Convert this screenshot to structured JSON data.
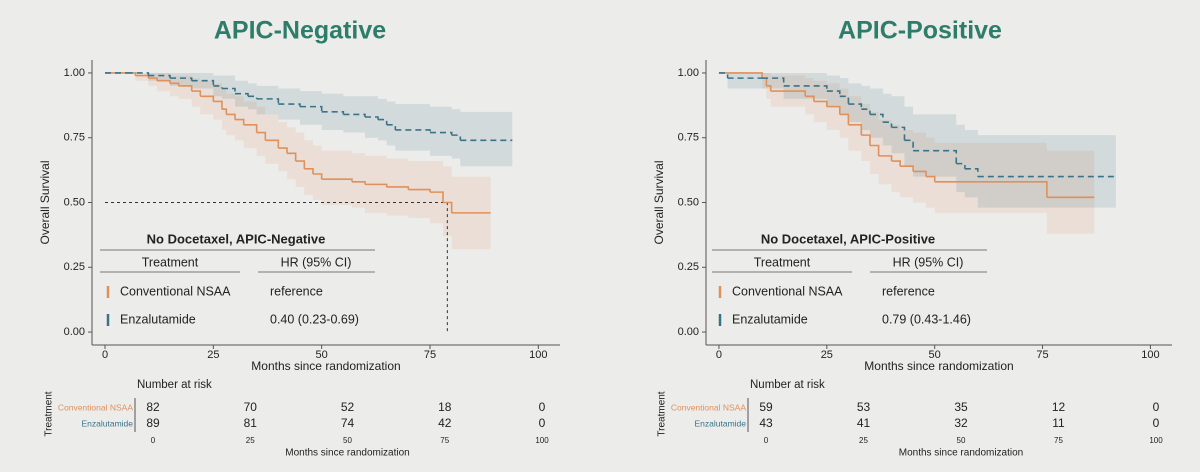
{
  "chart_data": [
    {
      "type": "step",
      "title": "APIC-Negative",
      "xlabel": "Months since randomization",
      "ylabel": "Overall Survival",
      "xlim": [
        -3,
        105
      ],
      "ylim": [
        -0.05,
        1.05
      ],
      "xticks": [
        0,
        25,
        50,
        75,
        100
      ],
      "yticks": [
        {
          "value": 0,
          "label": "0.00"
        },
        {
          "value": 0.25,
          "label": "0.25"
        },
        {
          "value": 0.5,
          "label": "0.50"
        },
        {
          "value": 0.75,
          "label": "0.75"
        },
        {
          "value": 1,
          "label": "1.00"
        }
      ],
      "median": {
        "x": 79,
        "y": 0.5
      },
      "legend_table": {
        "title": "No Docetaxel, APIC-Negative",
        "headers": [
          "Treatment",
          "HR (95% CI)"
        ]
      },
      "risk_table": {
        "title": "Number at risk",
        "ylabel": "Treatment",
        "xlabel": "Months since randomization",
        "times": [
          0,
          25,
          50,
          75,
          100
        ]
      },
      "series": [
        {
          "name": "Conventional NSAA",
          "color": "#e0905a",
          "dash": false,
          "hr": "reference",
          "at_risk": [
            82,
            70,
            52,
            18,
            0
          ],
          "x": [
            0,
            5,
            7,
            10,
            12,
            15,
            17,
            20,
            22,
            25,
            27,
            28,
            30,
            32,
            35,
            37,
            40,
            42,
            44,
            46,
            48,
            50,
            57,
            60,
            65,
            70,
            75,
            78,
            80,
            89
          ],
          "values": [
            1,
            1,
            0.99,
            0.98,
            0.97,
            0.96,
            0.95,
            0.93,
            0.91,
            0.89,
            0.86,
            0.84,
            0.82,
            0.8,
            0.77,
            0.74,
            0.71,
            0.69,
            0.66,
            0.63,
            0.61,
            0.59,
            0.58,
            0.57,
            0.56,
            0.55,
            0.54,
            0.5,
            0.46,
            0.46
          ],
          "lower": [
            1,
            1,
            0.97,
            0.95,
            0.93,
            0.91,
            0.9,
            0.87,
            0.84,
            0.82,
            0.78,
            0.76,
            0.74,
            0.71,
            0.68,
            0.65,
            0.62,
            0.59,
            0.56,
            0.53,
            0.51,
            0.49,
            0.48,
            0.46,
            0.45,
            0.44,
            0.42,
            0.37,
            0.32,
            0.32
          ],
          "upper": [
            1,
            1,
            1,
            1,
            1,
            0.99,
            0.99,
            0.98,
            0.97,
            0.96,
            0.94,
            0.92,
            0.91,
            0.89,
            0.87,
            0.84,
            0.81,
            0.79,
            0.77,
            0.74,
            0.72,
            0.7,
            0.69,
            0.68,
            0.67,
            0.66,
            0.66,
            0.64,
            0.6,
            0.6
          ]
        },
        {
          "name": "Enzalutamide",
          "color": "#3a7388",
          "dash": true,
          "hr": "0.40 (0.23-0.69)",
          "at_risk": [
            89,
            81,
            74,
            42,
            0
          ],
          "x": [
            0,
            5,
            10,
            15,
            20,
            25,
            27,
            30,
            33,
            35,
            40,
            45,
            50,
            55,
            60,
            63,
            65,
            67,
            75,
            80,
            82,
            94
          ],
          "values": [
            1,
            1,
            0.99,
            0.98,
            0.97,
            0.95,
            0.94,
            0.92,
            0.91,
            0.9,
            0.88,
            0.87,
            0.85,
            0.84,
            0.83,
            0.82,
            0.8,
            0.78,
            0.77,
            0.76,
            0.74,
            0.74
          ],
          "lower": [
            1,
            1,
            0.97,
            0.95,
            0.94,
            0.91,
            0.9,
            0.87,
            0.86,
            0.84,
            0.82,
            0.8,
            0.78,
            0.77,
            0.75,
            0.74,
            0.72,
            0.7,
            0.68,
            0.67,
            0.64,
            0.64
          ],
          "upper": [
            1,
            1,
            1,
            1,
            1,
            0.99,
            0.99,
            0.97,
            0.96,
            0.95,
            0.94,
            0.93,
            0.92,
            0.91,
            0.91,
            0.9,
            0.89,
            0.88,
            0.87,
            0.86,
            0.85,
            0.85
          ]
        }
      ]
    },
    {
      "type": "step",
      "title": "APIC-Positive",
      "xlabel": "Months since randomization",
      "ylabel": "Overall Survival",
      "xlim": [
        -3,
        105
      ],
      "ylim": [
        -0.05,
        1.05
      ],
      "xticks": [
        0,
        25,
        50,
        75,
        100
      ],
      "yticks": [
        {
          "value": 0,
          "label": "0.00"
        },
        {
          "value": 0.25,
          "label": "0.25"
        },
        {
          "value": 0.5,
          "label": "0.50"
        },
        {
          "value": 0.75,
          "label": "0.75"
        },
        {
          "value": 1,
          "label": "1.00"
        }
      ],
      "legend_table": {
        "title": "No Docetaxel, APIC-Positive",
        "headers": [
          "Treatment",
          "HR (95% CI)"
        ]
      },
      "risk_table": {
        "title": "Number at risk",
        "ylabel": "Treatment",
        "xlabel": "Months since randomization",
        "times": [
          0,
          25,
          50,
          75,
          100
        ]
      },
      "series": [
        {
          "name": "Conventional NSAA",
          "color": "#e0905a",
          "dash": false,
          "hr": "reference",
          "at_risk": [
            59,
            53,
            35,
            12,
            0
          ],
          "x": [
            0,
            10,
            11,
            12,
            20,
            22,
            25,
            28,
            30,
            33,
            35,
            37,
            40,
            42,
            45,
            48,
            50,
            76,
            87
          ],
          "values": [
            1,
            0.98,
            0.95,
            0.93,
            0.91,
            0.89,
            0.87,
            0.84,
            0.8,
            0.76,
            0.72,
            0.68,
            0.66,
            0.64,
            0.62,
            0.6,
            0.58,
            0.52,
            0.52
          ],
          "lower": [
            1,
            0.94,
            0.9,
            0.87,
            0.84,
            0.81,
            0.78,
            0.75,
            0.7,
            0.66,
            0.61,
            0.57,
            0.54,
            0.52,
            0.5,
            0.48,
            0.46,
            0.38,
            0.38
          ],
          "upper": [
            1,
            1,
            1,
            0.99,
            0.98,
            0.97,
            0.96,
            0.94,
            0.91,
            0.88,
            0.85,
            0.82,
            0.8,
            0.78,
            0.77,
            0.75,
            0.73,
            0.7,
            0.7
          ]
        },
        {
          "name": "Enzalutamide",
          "color": "#3a7388",
          "dash": true,
          "hr": "0.79 (0.43-1.46)",
          "at_risk": [
            43,
            41,
            32,
            11,
            0
          ],
          "x": [
            0,
            2,
            10,
            15,
            25,
            28,
            30,
            33,
            35,
            38,
            40,
            43,
            45,
            55,
            57,
            60,
            92
          ],
          "values": [
            1,
            0.98,
            0.98,
            0.95,
            0.93,
            0.91,
            0.88,
            0.86,
            0.84,
            0.81,
            0.79,
            0.74,
            0.7,
            0.65,
            0.63,
            0.6,
            0.6
          ],
          "lower": [
            1,
            0.94,
            0.94,
            0.9,
            0.87,
            0.84,
            0.81,
            0.78,
            0.75,
            0.72,
            0.69,
            0.64,
            0.6,
            0.54,
            0.52,
            0.48,
            0.48
          ],
          "upper": [
            1,
            1,
            1,
            1,
            0.99,
            0.98,
            0.96,
            0.95,
            0.94,
            0.92,
            0.91,
            0.87,
            0.84,
            0.8,
            0.78,
            0.76,
            0.76
          ]
        }
      ]
    }
  ]
}
